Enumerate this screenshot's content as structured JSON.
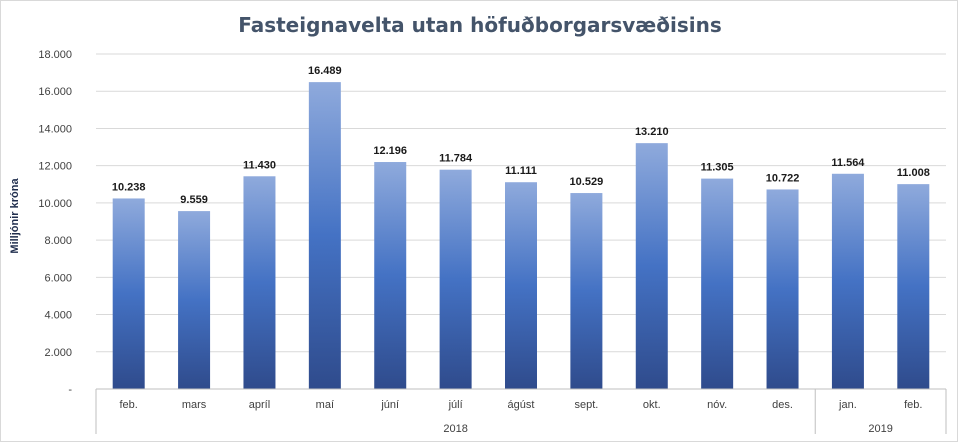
{
  "chart_data": {
    "type": "bar",
    "title": "Fasteignavelta utan höfuðborgarsvæðisins",
    "ylabel": "Milljónir króna",
    "xlabel": "",
    "categories": [
      "feb.",
      "mars",
      "apríl",
      "maí",
      "júní",
      "júlí",
      "ágúst",
      "sept.",
      "okt.",
      "nóv.",
      "des.",
      "jan.",
      "feb."
    ],
    "values": [
      10238,
      9559,
      11430,
      16489,
      12196,
      11784,
      11111,
      10529,
      13210,
      11305,
      10722,
      11564,
      11008
    ],
    "data_labels": [
      "10.238",
      "9.559",
      "11.430",
      "16.489",
      "12.196",
      "11.784",
      "11.111",
      "10.529",
      "13.210",
      "11.305",
      "10.722",
      "11.564",
      "11.008"
    ],
    "ylim": [
      0,
      18000
    ],
    "yticks": [
      0,
      2000,
      4000,
      6000,
      8000,
      10000,
      12000,
      14000,
      16000,
      18000
    ],
    "ytick_labels": [
      "-",
      "2.000",
      "4.000",
      "6.000",
      "8.000",
      "10.000",
      "12.000",
      "14.000",
      "16.000",
      "18.000"
    ],
    "groups": [
      {
        "label": "2018",
        "count": 11
      },
      {
        "label": "2019",
        "count": 2
      }
    ],
    "grid": true,
    "colors": {
      "bar_top": "#8faadc",
      "bar_mid": "#4472c4",
      "bar_bottom": "#2f4b8c",
      "grid": "#d9d9d9",
      "title": "#44546a"
    }
  }
}
